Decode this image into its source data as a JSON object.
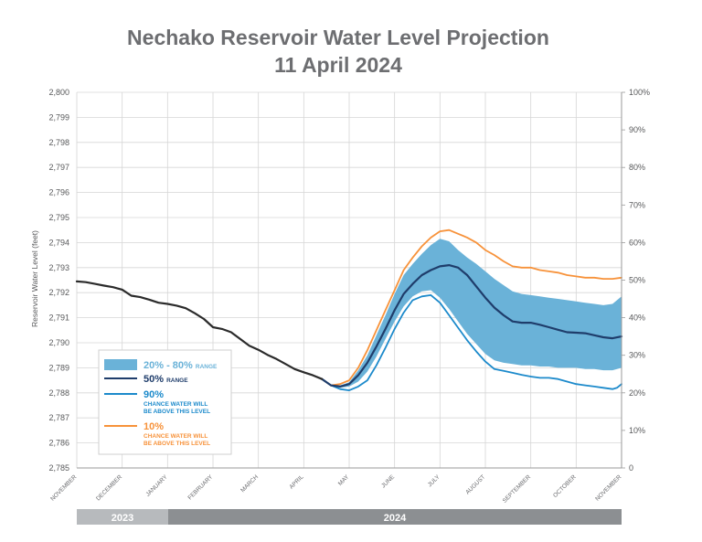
{
  "title_line1": "Nechako Reservoir Water Level Projection",
  "title_line2": "11 April 2024",
  "colors": {
    "band": "#6ab2d8",
    "p50": "#1f3d6b",
    "p90": "#1c8acb",
    "p10": "#f7923a",
    "history": "#2b2b2b",
    "grid": "#d6d6d6",
    "year2023": "#b7babd",
    "year2024": "#8c8f92"
  },
  "chart_data": {
    "type": "line",
    "ylabel": "Reservoir Water Level (feet)",
    "ylim": [
      2785,
      2800
    ],
    "yticks": [
      "2,785",
      "2,786",
      "2,787",
      "2,788",
      "2,789",
      "2,790",
      "2,791",
      "2,792",
      "2,793",
      "2,794",
      "2,795",
      "2,796",
      "2,797",
      "2,798",
      "2,799",
      "2,800"
    ],
    "y2ticks": [
      "0",
      "10%",
      "20%",
      "30%",
      "40%",
      "50%",
      "60%",
      "70%",
      "80%",
      "90%",
      "100%"
    ],
    "xlim": [
      0,
      12
    ],
    "months": [
      "NOVEMBER",
      "DECEMBER",
      "JANUARY",
      "FEBRUARY",
      "MARCH",
      "APRIL",
      "MAY",
      "JUNE",
      "JULY",
      "AUGUST",
      "SEPTEMBER",
      "OCTOBER",
      "NOVEMBER"
    ],
    "years": [
      "2023",
      "2024"
    ],
    "grid": true,
    "series": [
      {
        "key": "history",
        "x": [
          0,
          0.2,
          0.4,
          0.6,
          0.8,
          1.0,
          1.2,
          1.4,
          1.6,
          1.8,
          2.0,
          2.2,
          2.4,
          2.6,
          2.8,
          3.0,
          3.2,
          3.4,
          3.6,
          3.8,
          4.0,
          4.2,
          4.4,
          4.6,
          4.8,
          5.0,
          5.2,
          5.4
        ],
        "values": [
          2792.45,
          2792.42,
          2792.35,
          2792.28,
          2792.22,
          2792.12,
          2791.88,
          2791.82,
          2791.72,
          2791.6,
          2791.55,
          2791.48,
          2791.38,
          2791.18,
          2790.95,
          2790.62,
          2790.55,
          2790.42,
          2790.15,
          2789.88,
          2789.72,
          2789.52,
          2789.35,
          2789.15,
          2788.95,
          2788.82,
          2788.7,
          2788.55
        ]
      },
      {
        "key": "p10",
        "name": "10%",
        "x": [
          5.4,
          5.6,
          5.8,
          6.0,
          6.2,
          6.4,
          6.6,
          6.8,
          7.0,
          7.2,
          7.4,
          7.6,
          7.8,
          8.0,
          8.2,
          8.4,
          8.6,
          8.8,
          9.0,
          9.2,
          9.4,
          9.6,
          9.8,
          10.0,
          10.2,
          10.4,
          10.6,
          10.8,
          11.0,
          11.2,
          11.4,
          11.6,
          11.8,
          12.0
        ],
        "values": [
          2788.55,
          2788.3,
          2788.35,
          2788.5,
          2789.0,
          2789.7,
          2790.5,
          2791.3,
          2792.1,
          2792.9,
          2793.4,
          2793.85,
          2794.2,
          2794.45,
          2794.5,
          2794.35,
          2794.2,
          2794.0,
          2793.7,
          2793.5,
          2793.25,
          2793.05,
          2793.0,
          2793.0,
          2792.9,
          2792.85,
          2792.8,
          2792.7,
          2792.65,
          2792.6,
          2792.6,
          2792.55,
          2792.55,
          2792.6
        ]
      },
      {
        "key": "p50",
        "name": "50%",
        "x": [
          5.4,
          5.6,
          5.8,
          6.0,
          6.2,
          6.4,
          6.6,
          6.8,
          7.0,
          7.2,
          7.4,
          7.6,
          7.8,
          8.0,
          8.2,
          8.4,
          8.6,
          8.8,
          9.0,
          9.2,
          9.4,
          9.6,
          9.8,
          10.0,
          10.2,
          10.4,
          10.6,
          10.8,
          11.0,
          11.2,
          11.4,
          11.6,
          11.8,
          12.0
        ],
        "values": [
          2788.55,
          2788.3,
          2788.25,
          2788.35,
          2788.7,
          2789.2,
          2789.85,
          2790.55,
          2791.3,
          2791.95,
          2792.35,
          2792.7,
          2792.9,
          2793.05,
          2793.1,
          2793.0,
          2792.7,
          2792.25,
          2791.8,
          2791.4,
          2791.1,
          2790.85,
          2790.8,
          2790.8,
          2790.72,
          2790.62,
          2790.52,
          2790.42,
          2790.4,
          2790.38,
          2790.3,
          2790.22,
          2790.18,
          2790.25
        ]
      },
      {
        "key": "p90",
        "name": "90%",
        "x": [
          5.4,
          5.6,
          5.8,
          6.0,
          6.2,
          6.4,
          6.6,
          6.8,
          7.0,
          7.2,
          7.4,
          7.6,
          7.8,
          8.0,
          8.2,
          8.4,
          8.6,
          8.8,
          9.0,
          9.2,
          9.4,
          9.6,
          9.8,
          10.0,
          10.2,
          10.4,
          10.6,
          10.8,
          11.0,
          11.2,
          11.4,
          11.6,
          11.8,
          11.9,
          12.0
        ],
        "values": [
          2788.55,
          2788.3,
          2788.15,
          2788.1,
          2788.25,
          2788.5,
          2789.1,
          2789.8,
          2790.55,
          2791.2,
          2791.7,
          2791.85,
          2791.9,
          2791.6,
          2791.1,
          2790.6,
          2790.1,
          2789.65,
          2789.25,
          2788.95,
          2788.88,
          2788.8,
          2788.72,
          2788.65,
          2788.6,
          2788.6,
          2788.55,
          2788.45,
          2788.35,
          2788.3,
          2788.25,
          2788.2,
          2788.15,
          2788.2,
          2788.35
        ]
      }
    ],
    "band": {
      "key": "band",
      "name": "20% - 80%",
      "x": [
        5.4,
        5.6,
        5.8,
        6.0,
        6.2,
        6.4,
        6.6,
        6.8,
        7.0,
        7.2,
        7.4,
        7.6,
        7.8,
        8.0,
        8.2,
        8.4,
        8.6,
        8.8,
        9.0,
        9.2,
        9.4,
        9.6,
        9.8,
        10.0,
        10.2,
        10.4,
        10.6,
        10.8,
        11.0,
        11.2,
        11.4,
        11.6,
        11.8,
        12.0
      ],
      "upper": [
        2788.55,
        2788.3,
        2788.3,
        2788.42,
        2788.9,
        2789.5,
        2790.3,
        2791.1,
        2791.95,
        2792.7,
        2793.15,
        2793.55,
        2793.9,
        2794.15,
        2794.05,
        2793.7,
        2793.4,
        2793.15,
        2792.85,
        2792.55,
        2792.3,
        2792.05,
        2791.95,
        2791.9,
        2791.85,
        2791.8,
        2791.75,
        2791.7,
        2791.65,
        2791.6,
        2791.55,
        2791.5,
        2791.55,
        2791.85
      ],
      "lower": [
        2788.55,
        2788.3,
        2788.2,
        2788.25,
        2788.45,
        2788.85,
        2789.45,
        2790.15,
        2790.85,
        2791.45,
        2791.85,
        2792.05,
        2792.1,
        2791.8,
        2791.35,
        2790.85,
        2790.35,
        2789.95,
        2789.55,
        2789.3,
        2789.2,
        2789.15,
        2789.1,
        2789.1,
        2789.05,
        2789.05,
        2789.0,
        2789.0,
        2789.0,
        2788.95,
        2788.95,
        2788.9,
        2788.9,
        2789.0
      ]
    },
    "legend": {
      "placement": "bottom-left",
      "band_big": "20% - 80%",
      "band_small": "RANGE",
      "p50_big": "50%",
      "p50_small": "RANGE",
      "p90_big": "90%",
      "p90_small1": "CHANCE WATER WILL",
      "p90_small2": "BE ABOVE THIS LEVEL",
      "p10_big": "10%",
      "p10_small1": "CHANCE WATER WILL",
      "p10_small2": "BE ABOVE THIS LEVEL"
    }
  }
}
